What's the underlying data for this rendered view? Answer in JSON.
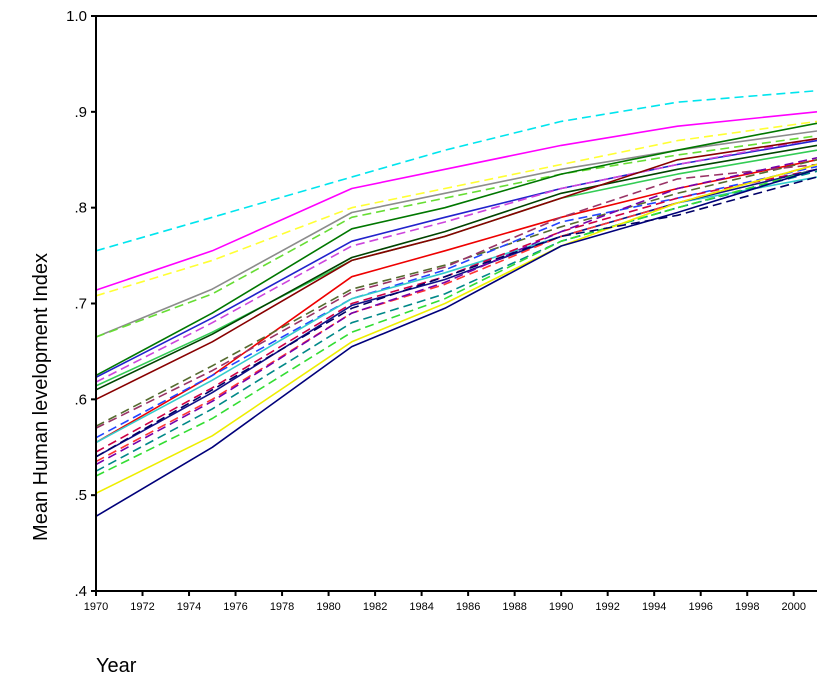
{
  "chart_data": {
    "type": "line",
    "title": "",
    "xlabel": "Year",
    "ylabel": "Mean Human levelopment Index",
    "xlim": [
      1970,
      2001
    ],
    "ylim": [
      0.4,
      1.0
    ],
    "yticks": [
      0.4,
      0.5,
      0.6,
      0.7,
      0.8,
      0.9,
      1.0
    ],
    "ytick_labels": [
      ".4",
      ".5",
      ".6",
      ".7",
      ".8",
      ".9",
      "1.0"
    ],
    "xticks": [
      1970,
      1972,
      1974,
      1976,
      1978,
      1980,
      1982,
      1984,
      1986,
      1988,
      1990,
      1992,
      1994,
      1996,
      1998,
      2000
    ],
    "xtick_labels": [
      "1970",
      "1972",
      "1974",
      "1976",
      "1978",
      "1980",
      "1982",
      "1984",
      "1986",
      "1988",
      "1990",
      "1992",
      "1994",
      "1996",
      "1998",
      "2000"
    ],
    "grid": false,
    "legend": "none",
    "series_style_note": "many series, solid and dashed, multicolored",
    "series": [
      {
        "color": "#00e5ee",
        "dash": true,
        "points": [
          [
            1970,
            0.755
          ],
          [
            1975,
            0.79
          ],
          [
            1980,
            0.825
          ],
          [
            1985,
            0.86
          ],
          [
            1990,
            0.89
          ],
          [
            1995,
            0.91
          ],
          [
            2001,
            0.922
          ]
        ]
      },
      {
        "color": "#ff00ff",
        "dash": false,
        "points": [
          [
            1970,
            0.714
          ],
          [
            1975,
            0.755
          ],
          [
            1981,
            0.82
          ],
          [
            1985,
            0.84
          ],
          [
            1990,
            0.865
          ],
          [
            1995,
            0.885
          ],
          [
            2001,
            0.9
          ]
        ]
      },
      {
        "color": "#ffff33",
        "dash": true,
        "points": [
          [
            1970,
            0.708
          ],
          [
            1975,
            0.745
          ],
          [
            1981,
            0.8
          ],
          [
            1985,
            0.82
          ],
          [
            1990,
            0.845
          ],
          [
            1995,
            0.87
          ],
          [
            2001,
            0.89
          ]
        ]
      },
      {
        "color": "#8c8c8c",
        "dash": false,
        "points": [
          [
            1970,
            0.665
          ],
          [
            1975,
            0.715
          ],
          [
            1981,
            0.795
          ],
          [
            1985,
            0.815
          ],
          [
            1990,
            0.84
          ],
          [
            1995,
            0.86
          ],
          [
            2001,
            0.88
          ]
        ]
      },
      {
        "color": "#66dd33",
        "dash": true,
        "points": [
          [
            1970,
            0.665
          ],
          [
            1975,
            0.71
          ],
          [
            1981,
            0.79
          ],
          [
            1985,
            0.81
          ],
          [
            1990,
            0.835
          ],
          [
            1995,
            0.855
          ],
          [
            2001,
            0.875
          ]
        ]
      },
      {
        "color": "#007700",
        "dash": false,
        "points": [
          [
            1970,
            0.625
          ],
          [
            1975,
            0.69
          ],
          [
            1981,
            0.778
          ],
          [
            1985,
            0.8
          ],
          [
            1990,
            0.835
          ],
          [
            1995,
            0.86
          ],
          [
            2001,
            0.888
          ]
        ]
      },
      {
        "color": "#2222cc",
        "dash": false,
        "points": [
          [
            1970,
            0.623
          ],
          [
            1975,
            0.685
          ],
          [
            1981,
            0.765
          ],
          [
            1985,
            0.79
          ],
          [
            1990,
            0.82
          ],
          [
            1995,
            0.845
          ],
          [
            2001,
            0.87
          ]
        ]
      },
      {
        "color": "#cc44dd",
        "dash": true,
        "points": [
          [
            1970,
            0.618
          ],
          [
            1975,
            0.68
          ],
          [
            1981,
            0.76
          ],
          [
            1985,
            0.785
          ],
          [
            1990,
            0.82
          ],
          [
            1995,
            0.845
          ],
          [
            2001,
            0.872
          ]
        ]
      },
      {
        "color": "#33cc55",
        "dash": false,
        "points": [
          [
            1970,
            0.614
          ],
          [
            1975,
            0.67
          ],
          [
            1981,
            0.745
          ],
          [
            1985,
            0.77
          ],
          [
            1990,
            0.81
          ],
          [
            1995,
            0.835
          ],
          [
            2001,
            0.86
          ]
        ]
      },
      {
        "color": "#004400",
        "dash": false,
        "points": [
          [
            1970,
            0.61
          ],
          [
            1975,
            0.668
          ],
          [
            1981,
            0.748
          ],
          [
            1985,
            0.775
          ],
          [
            1990,
            0.815
          ],
          [
            1995,
            0.84
          ],
          [
            2001,
            0.865
          ]
        ]
      },
      {
        "color": "#880000",
        "dash": false,
        "points": [
          [
            1970,
            0.6
          ],
          [
            1975,
            0.66
          ],
          [
            1981,
            0.745
          ],
          [
            1985,
            0.77
          ],
          [
            1990,
            0.81
          ],
          [
            1995,
            0.85
          ],
          [
            2001,
            0.872
          ]
        ]
      },
      {
        "color": "#ee0000",
        "dash": false,
        "points": [
          [
            1970,
            0.555
          ],
          [
            1975,
            0.625
          ],
          [
            1981,
            0.728
          ],
          [
            1985,
            0.755
          ],
          [
            1990,
            0.79
          ],
          [
            1995,
            0.82
          ],
          [
            2001,
            0.85
          ]
        ]
      },
      {
        "color": "#556b2f",
        "dash": true,
        "points": [
          [
            1970,
            0.572
          ],
          [
            1975,
            0.635
          ],
          [
            1981,
            0.715
          ],
          [
            1985,
            0.74
          ],
          [
            1990,
            0.78
          ],
          [
            1995,
            0.815
          ],
          [
            2001,
            0.85
          ]
        ]
      },
      {
        "color": "#993366",
        "dash": true,
        "points": [
          [
            1970,
            0.57
          ],
          [
            1975,
            0.63
          ],
          [
            1981,
            0.712
          ],
          [
            1985,
            0.738
          ],
          [
            1990,
            0.79
          ],
          [
            1995,
            0.83
          ],
          [
            2001,
            0.845
          ]
        ]
      },
      {
        "color": "#2244ff",
        "dash": true,
        "points": [
          [
            1970,
            0.56
          ],
          [
            1975,
            0.625
          ],
          [
            1981,
            0.705
          ],
          [
            1985,
            0.735
          ],
          [
            1990,
            0.785
          ],
          [
            1995,
            0.81
          ],
          [
            2001,
            0.843
          ]
        ]
      },
      {
        "color": "#33cccc",
        "dash": false,
        "points": [
          [
            1970,
            0.555
          ],
          [
            1975,
            0.62
          ],
          [
            1981,
            0.705
          ],
          [
            1985,
            0.732
          ],
          [
            1990,
            0.77
          ],
          [
            1995,
            0.805
          ],
          [
            2001,
            0.832
          ]
        ]
      },
      {
        "color": "#cc0044",
        "dash": true,
        "points": [
          [
            1970,
            0.545
          ],
          [
            1975,
            0.612
          ],
          [
            1981,
            0.7
          ],
          [
            1985,
            0.728
          ],
          [
            1990,
            0.775
          ],
          [
            1995,
            0.81
          ],
          [
            2001,
            0.84
          ]
        ]
      },
      {
        "color": "#111188",
        "dash": false,
        "points": [
          [
            1970,
            0.54
          ],
          [
            1975,
            0.607
          ],
          [
            1981,
            0.698
          ],
          [
            1985,
            0.725
          ],
          [
            1990,
            0.77
          ],
          [
            1995,
            0.805
          ],
          [
            2001,
            0.84
          ]
        ]
      },
      {
        "color": "#ff3333",
        "dash": true,
        "points": [
          [
            1970,
            0.535
          ],
          [
            1975,
            0.6
          ],
          [
            1981,
            0.69
          ],
          [
            1985,
            0.72
          ],
          [
            1990,
            0.77
          ],
          [
            1995,
            0.805
          ],
          [
            2001,
            0.845
          ]
        ]
      },
      {
        "color": "#7700aa",
        "dash": true,
        "points": [
          [
            1970,
            0.532
          ],
          [
            1975,
            0.598
          ],
          [
            1981,
            0.69
          ],
          [
            1985,
            0.722
          ],
          [
            1990,
            0.775
          ],
          [
            1995,
            0.82
          ],
          [
            2001,
            0.852
          ]
        ]
      },
      {
        "color": "#008888",
        "dash": true,
        "points": [
          [
            1970,
            0.525
          ],
          [
            1975,
            0.59
          ],
          [
            1981,
            0.68
          ],
          [
            1985,
            0.71
          ],
          [
            1990,
            0.765
          ],
          [
            1995,
            0.8
          ],
          [
            2001,
            0.838
          ]
        ]
      },
      {
        "color": "#33dd33",
        "dash": true,
        "points": [
          [
            1970,
            0.52
          ],
          [
            1975,
            0.58
          ],
          [
            1981,
            0.67
          ],
          [
            1985,
            0.705
          ],
          [
            1990,
            0.765
          ],
          [
            1995,
            0.8
          ],
          [
            2001,
            0.84
          ]
        ]
      },
      {
        "color": "#eeee00",
        "dash": false,
        "points": [
          [
            1970,
            0.502
          ],
          [
            1975,
            0.562
          ],
          [
            1981,
            0.66
          ],
          [
            1985,
            0.7
          ],
          [
            1990,
            0.76
          ],
          [
            1995,
            0.805
          ],
          [
            2001,
            0.845
          ]
        ]
      },
      {
        "color": "#00007a",
        "dash": false,
        "points": [
          [
            1970,
            0.478
          ],
          [
            1975,
            0.55
          ],
          [
            1981,
            0.655
          ],
          [
            1985,
            0.695
          ],
          [
            1990,
            0.76
          ],
          [
            1995,
            0.795
          ],
          [
            2001,
            0.84
          ]
        ]
      },
      {
        "color": "#000066",
        "dash": true,
        "points": [
          [
            1970,
            0.54
          ],
          [
            1975,
            0.61
          ],
          [
            1981,
            0.695
          ],
          [
            1985,
            0.728
          ],
          [
            1990,
            0.77
          ],
          [
            1995,
            0.792
          ],
          [
            2001,
            0.832
          ]
        ]
      }
    ]
  }
}
